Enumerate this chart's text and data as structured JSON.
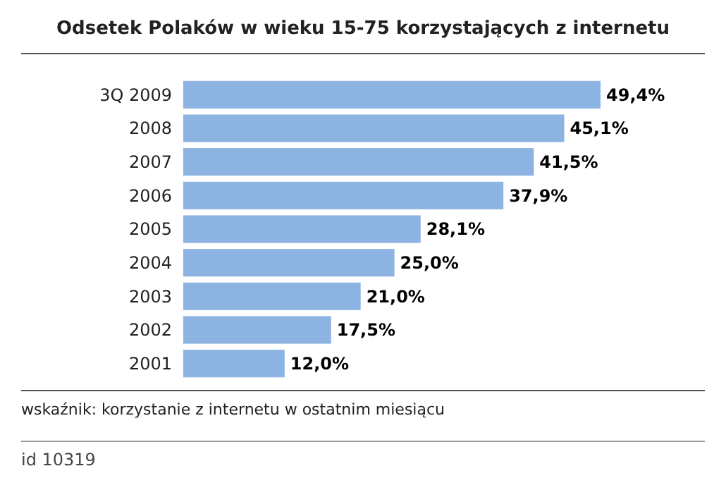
{
  "chart_data": {
    "type": "bar",
    "orientation": "horizontal",
    "title": "Odsetek Polaków w wieku 15-75 korzystających z internetu",
    "categories": [
      "3Q 2009",
      "2008",
      "2007",
      "2006",
      "2005",
      "2004",
      "2003",
      "2002",
      "2001"
    ],
    "values": [
      49.4,
      45.1,
      41.5,
      37.9,
      28.1,
      25.0,
      21.0,
      17.5,
      12.0
    ],
    "value_labels": [
      "49,4%",
      "45,1%",
      "41,5%",
      "37,9%",
      "28,1%",
      "25,0%",
      "21,0%",
      "17,5%",
      "12,0%"
    ],
    "color": "#8db3e2",
    "annotations": [
      "wskaźnik: korzystanie z internetu w ostatnim miesiącu",
      "id 10319"
    ]
  }
}
